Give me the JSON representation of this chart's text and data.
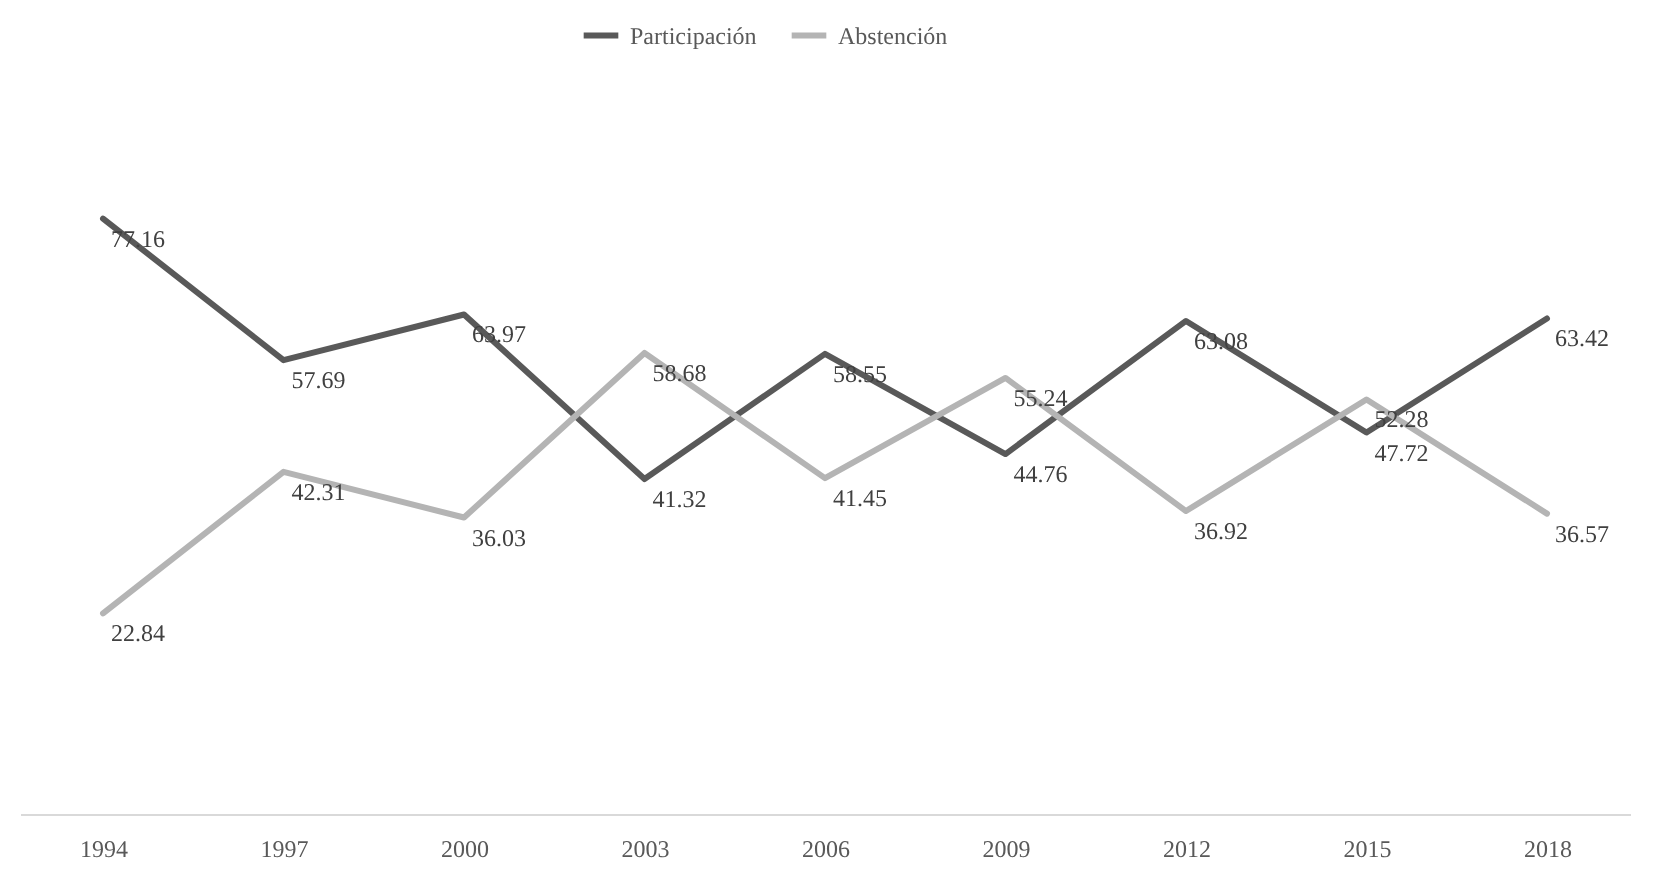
{
  "chart_data": {
    "type": "line",
    "categories": [
      "1994",
      "1997",
      "2000",
      "2003",
      "2006",
      "2009",
      "2012",
      "2015",
      "2018"
    ],
    "series": [
      {
        "name": "Participación",
        "color": "#595959",
        "values": [
          77.16,
          57.69,
          63.97,
          41.32,
          58.55,
          44.76,
          63.08,
          47.72,
          63.42
        ]
      },
      {
        "name": "Abstención",
        "color": "#b4b4b4",
        "values": [
          22.84,
          42.31,
          36.03,
          58.68,
          41.45,
          55.24,
          36.92,
          52.28,
          36.57
        ]
      }
    ],
    "data_labels": true,
    "legend": "top",
    "grid": false,
    "marker": "none",
    "line_style": "solid"
  }
}
